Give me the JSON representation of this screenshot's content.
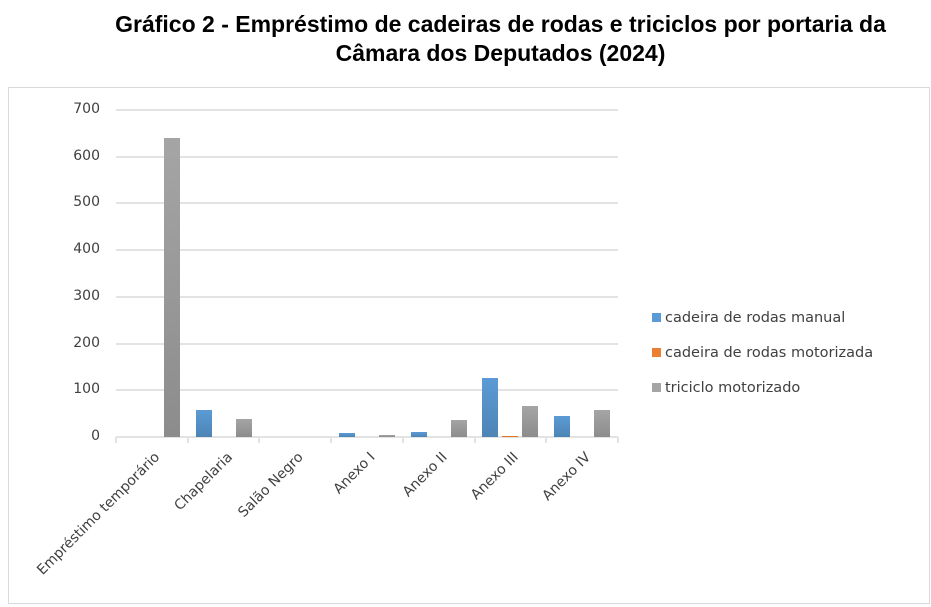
{
  "title_line1": "Gráfico 2 -  Empréstimo de cadeiras de rodas e triciclos por portaria da",
  "title_line2": "Câmara dos Deputados (2024)",
  "yticks": [
    "700",
    "600",
    "500",
    "400",
    "300",
    "200",
    "100",
    "0"
  ],
  "legend": [
    {
      "label": "cadeira de rodas manual",
      "color": "#5b9bd5"
    },
    {
      "label": "cadeira de rodas motorizada",
      "color": "#ed7d31"
    },
    {
      "label": "triciclo motorizado",
      "color": "#a5a5a5"
    }
  ],
  "categories_labels": [
    "Empréstimo temporário",
    "Chapelaria",
    "Salão Negro",
    "Anexo I",
    "Anexo II",
    "Anexo III",
    "Anexo IV"
  ],
  "chart_data": {
    "type": "bar",
    "title": "Gráfico 2 - Empréstimo de cadeiras de rodas e triciclos por portaria da Câmara dos Deputados (2024)",
    "categories": [
      "Empréstimo temporário",
      "Chapelaria",
      "Salão Negro",
      "Anexo I",
      "Anexo II",
      "Anexo III",
      "Anexo IV"
    ],
    "series": [
      {
        "name": "cadeira de rodas manual",
        "color": "#5b9bd5",
        "values": [
          0,
          58,
          0,
          9,
          11,
          127,
          46
        ]
      },
      {
        "name": "cadeira de rodas motorizada",
        "color": "#ed7d31",
        "values": [
          0,
          0,
          0,
          0,
          0,
          3,
          0
        ]
      },
      {
        "name": "triciclo motorizado",
        "color": "#a5a5a5",
        "values": [
          640,
          39,
          0,
          5,
          37,
          67,
          58
        ]
      }
    ],
    "xlabel": "",
    "ylabel": "",
    "ylim": [
      0,
      700
    ],
    "yticks": [
      0,
      100,
      200,
      300,
      400,
      500,
      600,
      700
    ],
    "grid": true,
    "legend_position": "right"
  }
}
